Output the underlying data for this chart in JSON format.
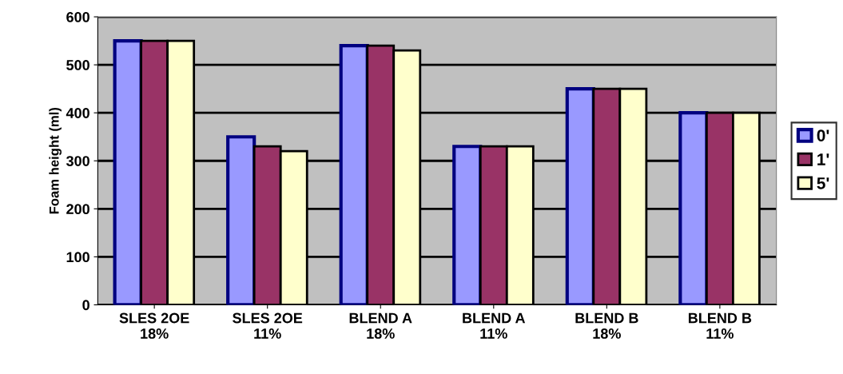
{
  "chart_data": {
    "type": "bar",
    "ylabel": "Foam height (ml)",
    "categories": [
      "SLES 2OE\n18%",
      "SLES 2OE\n11%",
      "BLEND A\n18%",
      "BLEND A\n11%",
      "BLEND B\n18%",
      "BLEND B\n11%"
    ],
    "series": [
      {
        "name": "0'",
        "color": "#9999ff",
        "values": [
          550,
          350,
          540,
          330,
          450,
          400
        ]
      },
      {
        "name": "1'",
        "color": "#993366",
        "values": [
          550,
          330,
          540,
          330,
          450,
          400
        ]
      },
      {
        "name": "5'",
        "color": "#ffffcc",
        "values": [
          550,
          320,
          530,
          330,
          450,
          400
        ]
      }
    ],
    "ylim": [
      0,
      600
    ],
    "yticks": [
      0,
      100,
      200,
      300,
      400,
      500,
      600
    ],
    "grid": "y",
    "legend": "right"
  }
}
